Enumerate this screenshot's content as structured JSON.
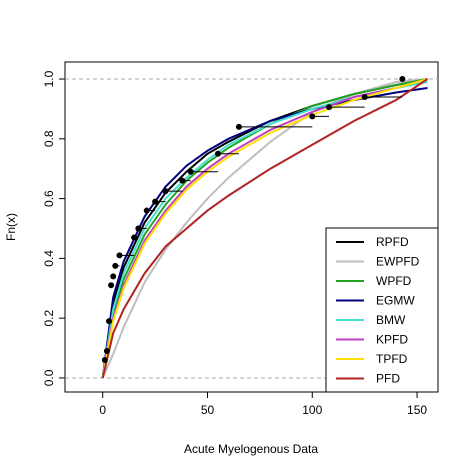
{
  "chart_data": {
    "type": "line",
    "xlabel": "Acute Myelogenous Data",
    "ylabel": "Fn(x)",
    "xlim": [
      -18,
      160
    ],
    "ylim": [
      -0.047,
      1.057
    ],
    "xticks": [
      0,
      50,
      100,
      150
    ],
    "yticks": [
      {
        "value": 0,
        "label": "0.0"
      },
      0.2,
      0.4,
      0.6,
      0.8,
      {
        "value": 1,
        "label": "1.0"
      }
    ],
    "hlines": [
      0,
      1
    ],
    "legend": "bottomright",
    "ecdf": {
      "color": "#000000",
      "x": [
        1,
        2,
        3,
        4,
        5,
        6,
        8,
        15,
        17,
        21,
        25,
        30,
        38,
        42,
        55,
        65,
        100,
        108,
        125,
        143
      ],
      "y": [
        0.06,
        0.09,
        0.19,
        0.31,
        0.34,
        0.375,
        0.41,
        0.47,
        0.5,
        0.56,
        0.59,
        0.625,
        0.66,
        0.69,
        0.75,
        0.84,
        0.875,
        0.906,
        0.94,
        1.0
      ]
    },
    "x": [
      0,
      5,
      10,
      20,
      30,
      40,
      50,
      60,
      80,
      100,
      120,
      140,
      155
    ],
    "series": [
      {
        "name": "RPFD",
        "color": "#000000",
        "values": [
          0,
          0.25,
          0.37,
          0.52,
          0.62,
          0.69,
          0.75,
          0.79,
          0.86,
          0.91,
          0.95,
          0.98,
          1.0
        ]
      },
      {
        "name": "EWPFD",
        "color": "#bebebe",
        "values": [
          0,
          0.08,
          0.17,
          0.32,
          0.43,
          0.52,
          0.6,
          0.67,
          0.79,
          0.89,
          0.95,
          0.99,
          1.0
        ]
      },
      {
        "name": "WPFD",
        "color": "#22a322",
        "values": [
          0,
          0.22,
          0.33,
          0.48,
          0.58,
          0.66,
          0.72,
          0.77,
          0.85,
          0.91,
          0.95,
          0.98,
          1.0
        ]
      },
      {
        "name": "EGMW",
        "color": "#000080",
        "values": [
          0,
          0.27,
          0.39,
          0.54,
          0.64,
          0.71,
          0.76,
          0.8,
          0.86,
          0.9,
          0.93,
          0.955,
          0.97
        ]
      },
      {
        "name": "BMW",
        "color": "#40e0d0",
        "values": [
          0,
          0.23,
          0.35,
          0.5,
          0.6,
          0.67,
          0.73,
          0.78,
          0.85,
          0.9,
          0.94,
          0.97,
          0.99
        ]
      },
      {
        "name": "KPFD",
        "color": "#c040c0",
        "values": [
          0,
          0.2,
          0.31,
          0.46,
          0.56,
          0.64,
          0.7,
          0.75,
          0.83,
          0.89,
          0.94,
          0.97,
          1.0
        ]
      },
      {
        "name": "TPFD",
        "color": "#ffe000",
        "values": [
          0,
          0.19,
          0.3,
          0.45,
          0.55,
          0.63,
          0.69,
          0.74,
          0.82,
          0.88,
          0.93,
          0.97,
          1.0
        ]
      },
      {
        "name": "PFD",
        "color": "#b22222",
        "values": [
          0,
          0.15,
          0.23,
          0.35,
          0.44,
          0.5,
          0.56,
          0.61,
          0.7,
          0.78,
          0.86,
          0.93,
          1.0
        ]
      }
    ]
  }
}
